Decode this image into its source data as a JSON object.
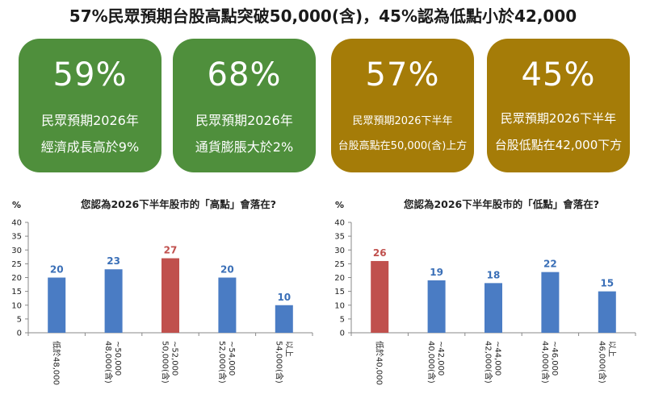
{
  "title": "57%民眾預期台股高點突破50,000(含)，45%認為低點小於42,000",
  "stats": [
    {
      "value": "59%",
      "line1": "民眾預期2026年",
      "line2": "經濟成長高於9%",
      "color": "#4f8f3c"
    },
    {
      "value": "68%",
      "line1": "民眾預期2026年",
      "line2": "通貨膨脹大於2%",
      "color": "#4f8f3c"
    },
    {
      "value": "57%",
      "line1": "民眾預期2026下半年",
      "line2": "台股高點在50,000(含)上方",
      "color": "#a57c08"
    },
    {
      "value": "45%",
      "line1": "民眾預期2026下半年",
      "line2": "台股低點在42,000下方",
      "color": "#a57c08"
    }
  ],
  "chart_data": [
    {
      "type": "bar",
      "title": "您認為2026下半年股市的「高點」會落在?",
      "ylabel": "%",
      "ylim": [
        0,
        40
      ],
      "yticks": [
        0,
        5,
        10,
        15,
        20,
        25,
        30,
        35,
        40
      ],
      "categories": [
        [
          "低於48,000"
        ],
        [
          "48,000(含)",
          "~50,000"
        ],
        [
          "50,000(含)",
          "~52,000"
        ],
        [
          "52,000(含)",
          "~54,000"
        ],
        [
          "54,000(含)",
          "以上"
        ]
      ],
      "values": [
        20,
        23,
        27,
        20,
        10
      ],
      "highlight_index": 2,
      "colors": {
        "bar": "#4a7cc4",
        "highlight": "#c0504d",
        "label": "#3a6fb7",
        "highlight_label": "#c0504d"
      }
    },
    {
      "type": "bar",
      "title": "您認為2026下半年股市的「低點」會落在?",
      "ylabel": "%",
      "ylim": [
        0,
        40
      ],
      "yticks": [
        0,
        5,
        10,
        15,
        20,
        25,
        30,
        35,
        40
      ],
      "categories": [
        [
          "低於40,000"
        ],
        [
          "40,000(含)",
          "~42,000"
        ],
        [
          "42,000(含)",
          "~44,000"
        ],
        [
          "44,000(含)",
          "~46,000"
        ],
        [
          "46,000(含)",
          "以上"
        ]
      ],
      "values": [
        26,
        19,
        18,
        22,
        15
      ],
      "highlight_index": 0,
      "colors": {
        "bar": "#4a7cc4",
        "highlight": "#c0504d",
        "label": "#3a6fb7",
        "highlight_label": "#c0504d"
      }
    }
  ]
}
